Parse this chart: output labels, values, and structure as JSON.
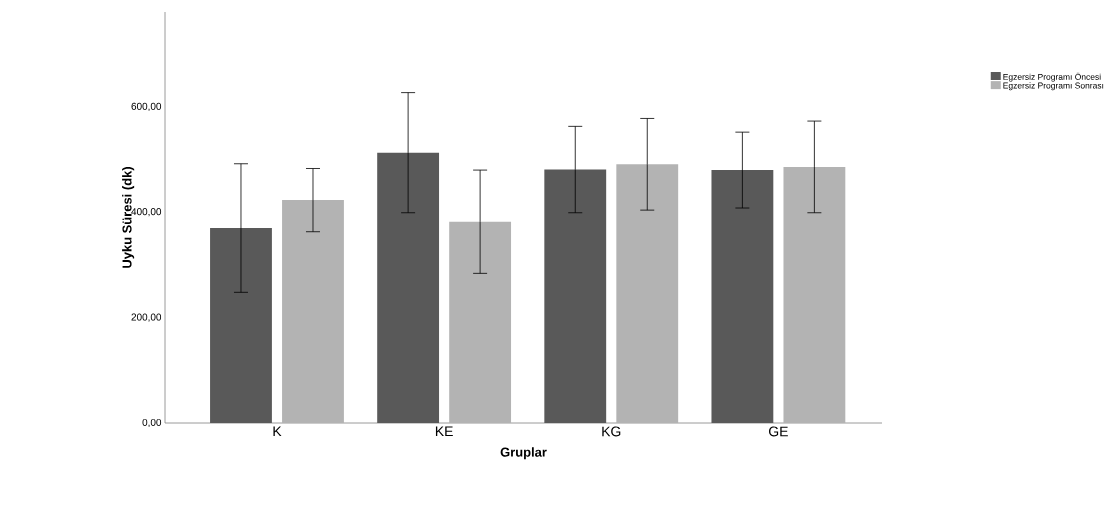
{
  "chart_data": {
    "type": "bar",
    "xlabel": "Gruplar",
    "ylabel": "Uyku Süresi (dk)",
    "categories": [
      "K",
      "KE",
      "KG",
      "GE"
    ],
    "series": [
      {
        "name": "Egzersiz Programı Öncesi",
        "color": "#595959",
        "values": [
          370,
          513,
          481,
          480
        ],
        "errors": [
          122,
          114,
          82,
          72
        ]
      },
      {
        "name": "Egzersiz Programı Sonrası",
        "color": "#b3b3b3",
        "values": [
          423,
          382,
          491,
          486
        ],
        "errors": [
          60,
          98,
          87,
          87
        ]
      }
    ],
    "ylim": [
      0,
      780
    ],
    "yticks": [
      {
        "value": 0,
        "label": "0,00"
      },
      {
        "value": 200,
        "label": "200,00"
      },
      {
        "value": 400,
        "label": "400,00"
      },
      {
        "value": 600,
        "label": "600,00"
      }
    ],
    "grid": false,
    "legend": "top right"
  }
}
